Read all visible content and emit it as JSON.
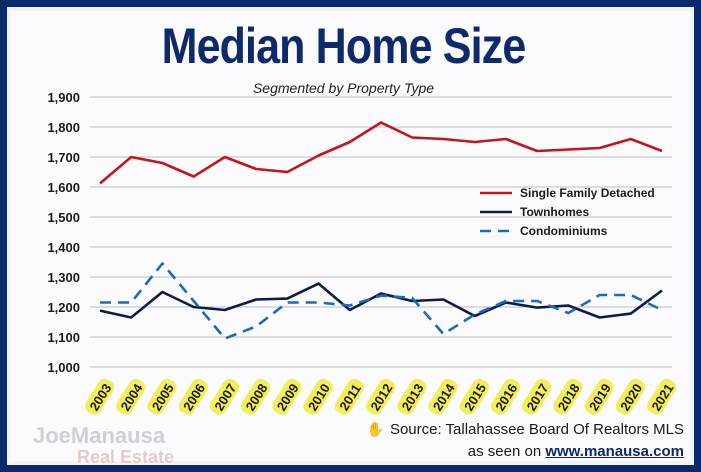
{
  "header": {
    "title": "Median Home Size",
    "subtitle": "Segmented by Property Type"
  },
  "source": {
    "line1": "Source: Tallahassee Board Of Realtors MLS",
    "line2_prefix": "as seen on ",
    "line2_link": "www.manausa.com"
  },
  "logo": {
    "line1": "JoeManausa",
    "line2": "Real Estate"
  },
  "colors": {
    "single_family": "#c0161c",
    "townhomes": "#0d1b4a",
    "condominiums": "#1c6bb8",
    "frame": "#0b2a6b",
    "title": "#0f2a6b",
    "year_highlight": "#f2ee5a"
  },
  "chart_data": {
    "type": "line",
    "title": "Median Home Size",
    "subtitle": "Segmented by Property Type",
    "x": [
      "2003",
      "2004",
      "2005",
      "2006",
      "2007",
      "2008",
      "2009",
      "2010",
      "2011",
      "2012",
      "2013",
      "2014",
      "2015",
      "2016",
      "2017",
      "2018",
      "2019",
      "2020",
      "2021"
    ],
    "ylim": [
      1000,
      1900
    ],
    "yticks": [
      1000,
      1100,
      1200,
      1300,
      1400,
      1500,
      1600,
      1700,
      1800,
      1900
    ],
    "ytick_labels": [
      "1,000",
      "1,100",
      "1,200",
      "1,300",
      "1,400",
      "1,500",
      "1,600",
      "1,700",
      "1,800",
      "1,900"
    ],
    "grid": true,
    "legend_position": "right",
    "series": [
      {
        "name": "Single Family Detached",
        "style": "solid",
        "values": [
          1612,
          1700,
          1680,
          1635,
          1700,
          1660,
          1650,
          1705,
          1750,
          1815,
          1765,
          1760,
          1750,
          1760,
          1720,
          1725,
          1730,
          1760,
          1720
        ]
      },
      {
        "name": "Townhomes",
        "style": "solid",
        "values": [
          1188,
          1165,
          1250,
          1200,
          1190,
          1225,
          1228,
          1278,
          1190,
          1245,
          1220,
          1225,
          1170,
          1215,
          1198,
          1205,
          1165,
          1178,
          1255
        ]
      },
      {
        "name": "Condominiums",
        "style": "dashed",
        "values": [
          1215,
          1215,
          1345,
          1220,
          1095,
          1135,
          1215,
          1215,
          1205,
          1238,
          1230,
          1110,
          1175,
          1220,
          1220,
          1180,
          1240,
          1240,
          1190
        ]
      }
    ]
  }
}
